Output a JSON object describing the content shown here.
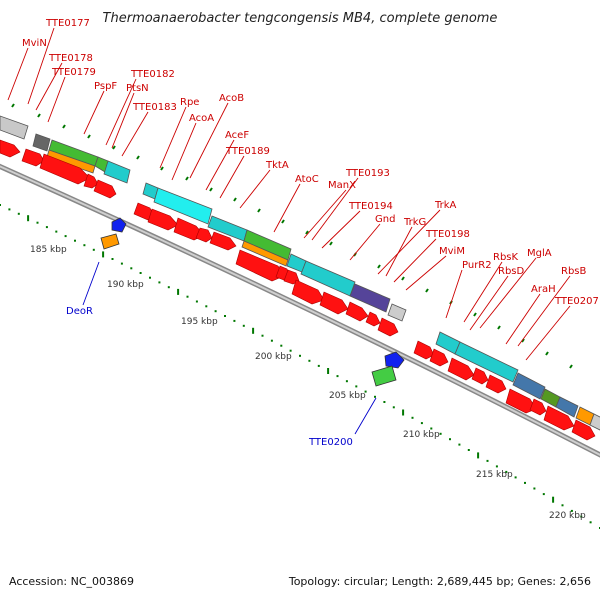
{
  "title": "Thermoanaerobacter tengcongensis MB4, complete genome",
  "footer": {
    "accession": "Accession: NC_003869",
    "stats": "Topology: circular; Length: 2,689,445 bp; Genes: 2,656"
  },
  "colors": {
    "gene_label": "#cc0000",
    "rna_label": "#0000cc",
    "arrow": "#ff0000",
    "tick": "#007700",
    "ruler": "#444444",
    "backbone": "#999999"
  },
  "ruler_labels": [
    "185 kbp",
    "190 kbp",
    "195 kbp",
    "200 kbp",
    "205 kbp",
    "210 kbp",
    "215 kbp",
    "220 kbp"
  ],
  "gene_labels": [
    "TTE0177",
    "MviN",
    "TTE0178",
    "TTE0179",
    "PspF",
    "TTE0182",
    "PtsN",
    "TTE0183",
    "Rpe",
    "AcoB",
    "AcoA",
    "AceF",
    "TTE0189",
    "TktA",
    "AtoC",
    "TTE0193",
    "ManX",
    "TTE0194",
    "Gnd",
    "TrkA",
    "TrkG",
    "TTE0198",
    "MviM",
    "PurR2",
    "RbsK",
    "MglA",
    "RbsD",
    "RbsB",
    "AraH",
    "TTE0207"
  ],
  "rna_labels": [
    "DeoR",
    "TTE0200"
  ]
}
